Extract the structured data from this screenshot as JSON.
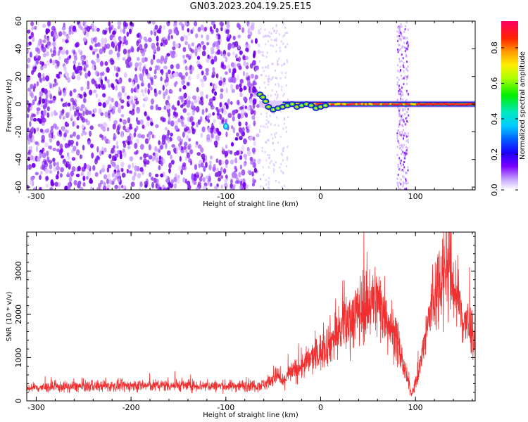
{
  "title": "GN03.2023.204.19.25.E15",
  "chart_data": [
    {
      "type": "heatmap",
      "xlabel": "Height of straight line (km)",
      "ylabel": "Frequency (Hz)",
      "xlim": [
        -310,
        163
      ],
      "ylim": [
        -62,
        60
      ],
      "xticks": [
        -300,
        -200,
        -100,
        0,
        100
      ],
      "yticks": [
        60,
        40,
        20,
        0,
        -20,
        -40,
        -60
      ],
      "colorbar": {
        "label": "Normalized spectral amplitude",
        "ticks": [
          0.0,
          0.2,
          0.4,
          0.6,
          0.8
        ],
        "range": [
          0,
          0.95
        ]
      },
      "features": [
        {
          "name": "broadband noise",
          "x_range": [
            -310,
            -65
          ],
          "amplitude": 0.1
        },
        {
          "name": "narrowband tone",
          "x_range": [
            -65,
            163
          ],
          "freq_hz": 0,
          "amplitude": 0.9
        },
        {
          "name": "vertical stripe",
          "x_range": [
            80,
            92
          ],
          "amplitude": 0.15
        },
        {
          "name": "spot",
          "x": -100,
          "y": -16,
          "amplitude": 0.3
        }
      ]
    },
    {
      "type": "line",
      "xlabel": "Height of straight line (km)",
      "ylabel": "SNR (10 * v/v)",
      "xlim": [
        -310,
        163
      ],
      "ylim": [
        0,
        3900
      ],
      "xticks": [
        -300,
        -200,
        -100,
        0,
        100
      ],
      "yticks": [
        0,
        1000,
        2000,
        3000
      ],
      "color": "#f03030",
      "series": [
        {
          "x": [
            -310,
            -260,
            -200,
            -150,
            -100,
            -60,
            -45,
            -40,
            -35,
            -20,
            0,
            20,
            40,
            55,
            65,
            80,
            90,
            96,
            105,
            115,
            125,
            133,
            140,
            150,
            163
          ],
          "y": [
            300,
            330,
            350,
            360,
            340,
            370,
            600,
            400,
            600,
            800,
            1150,
            1600,
            2100,
            2350,
            2200,
            1400,
            600,
            150,
            800,
            2000,
            2800,
            3200,
            2700,
            1900,
            1500
          ]
        }
      ]
    }
  ]
}
